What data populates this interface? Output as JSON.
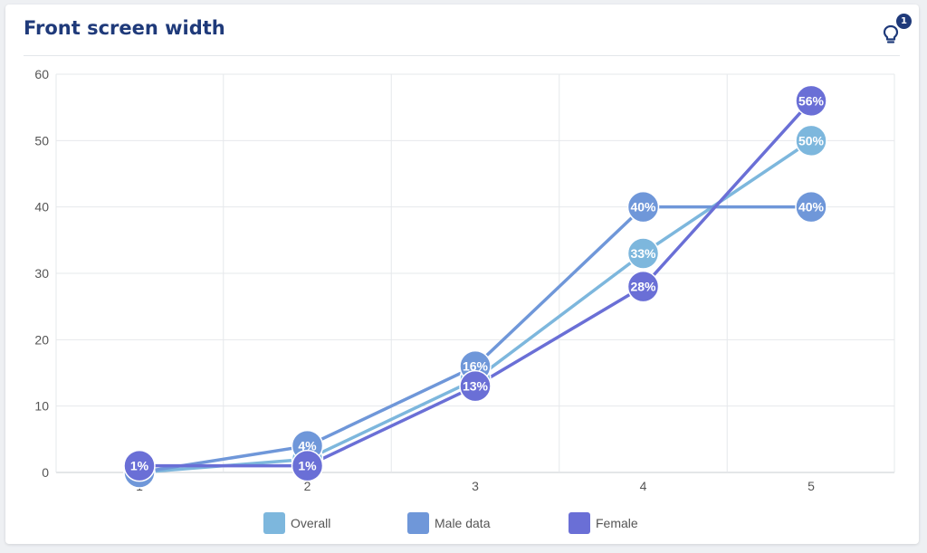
{
  "card": {
    "title": "Front screen width",
    "hint_badge": "1",
    "hint_icon": "lightbulb-icon"
  },
  "chart_data": {
    "type": "line",
    "x": [
      1,
      2,
      3,
      4,
      5
    ],
    "ylim": [
      0,
      60
    ],
    "yticks": [
      0,
      10,
      20,
      30,
      40,
      50,
      60
    ],
    "grid": true,
    "legend_position": "bottom-center",
    "series": [
      {
        "name": "Overall",
        "color": "#7db7dd",
        "values": [
          0,
          2,
          14,
          33,
          50
        ],
        "labels": [
          "0%",
          "2%",
          "14%",
          "33%",
          "50%"
        ]
      },
      {
        "name": "Male data",
        "color": "#6f97d9",
        "values": [
          0,
          4,
          16,
          40,
          40
        ],
        "labels": [
          "0%",
          "4%",
          "16%",
          "40%",
          "40%"
        ]
      },
      {
        "name": "Female",
        "color": "#6a6fd6",
        "values": [
          1,
          1,
          13,
          28,
          56
        ],
        "labels": [
          "1%",
          "1%",
          "13%",
          "28%",
          "56%"
        ]
      }
    ]
  }
}
